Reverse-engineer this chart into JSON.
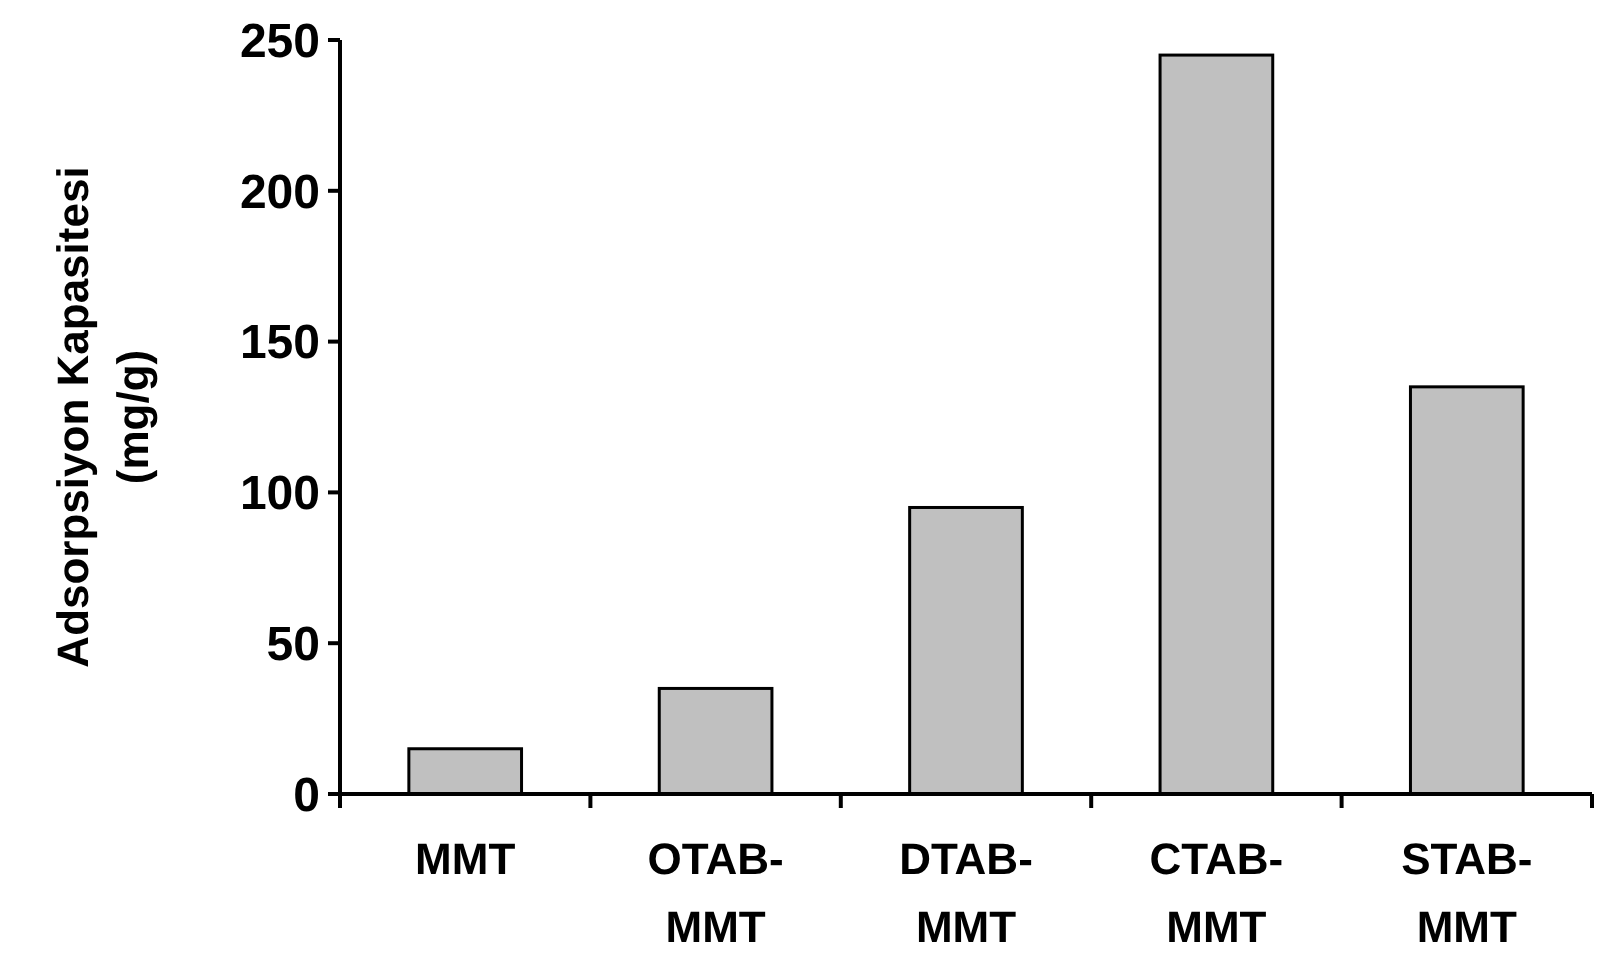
{
  "chart_data": {
    "type": "bar",
    "ylabel": "Adsorpsiyon Kapasitesi\n(mg/g)",
    "categories": [
      "MMT",
      "OTAB-MMT",
      "DTAB-MMT",
      "CTAB-MMT",
      "STAB-MMT"
    ],
    "values": [
      15,
      35,
      95,
      245,
      135
    ],
    "color": "#c0c0c0",
    "ylim": [
      0,
      250
    ],
    "yticks": [
      0,
      50,
      100,
      150,
      200,
      250
    ],
    "grid": false
  }
}
